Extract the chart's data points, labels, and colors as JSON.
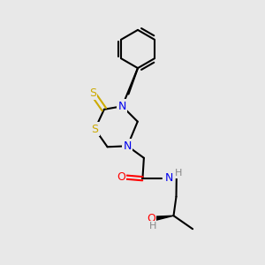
{
  "bg_color": "#e8e8e8",
  "atom_colors": {
    "N": "#0000ee",
    "S": "#ccaa00",
    "O": "#ff0000",
    "H": "#888888"
  },
  "bond_color": "#000000",
  "bond_width": 1.5
}
